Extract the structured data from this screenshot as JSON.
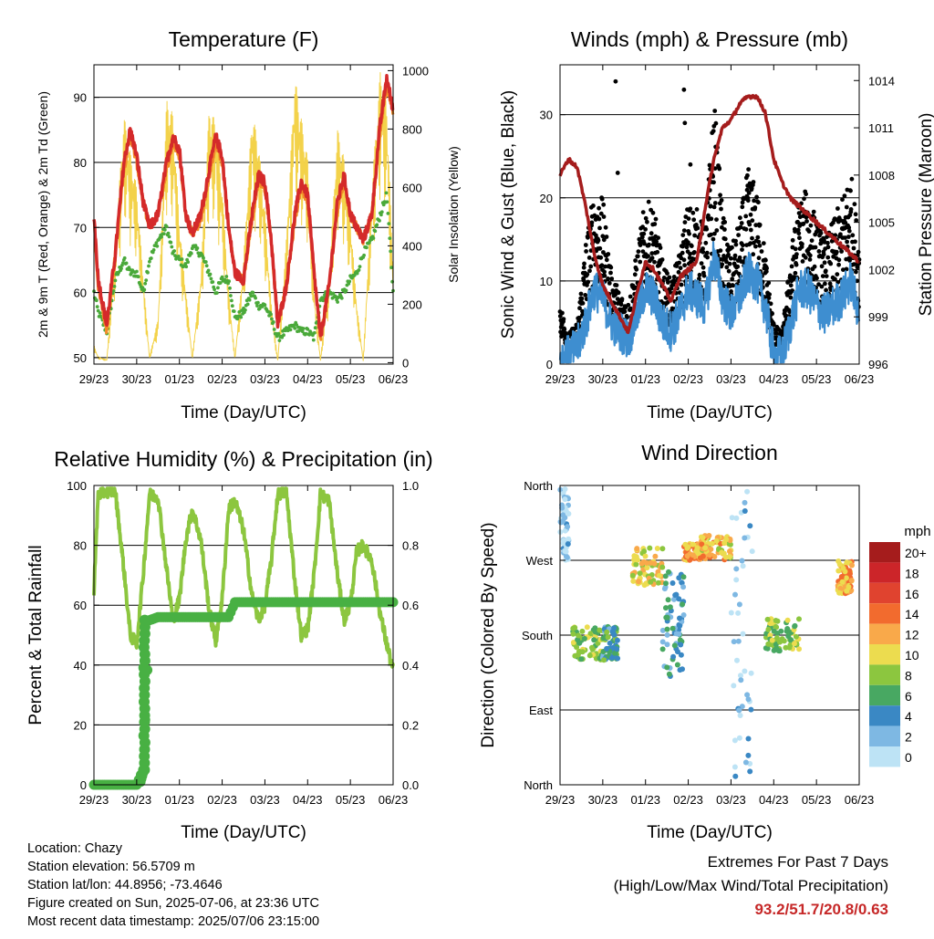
{
  "x_ticks": [
    "29/23",
    "30/23",
    "01/23",
    "02/23",
    "03/23",
    "04/23",
    "05/23",
    "06/23"
  ],
  "x_label": "Time (Day/UTC)",
  "panels": {
    "temperature": {
      "title": "Temperature (F)",
      "ylabel_left": "2m & 9m T (Red, Orange) & 2m Td (Green)",
      "ylabel_right": "Solar Insolation (Yellow)",
      "left_ticks": [
        "50",
        "60",
        "70",
        "80",
        "90"
      ],
      "right_ticks": [
        "0",
        "200",
        "400",
        "600",
        "800",
        "1000"
      ]
    },
    "winds": {
      "title": "Winds (mph) & Pressure (mb)",
      "ylabel_left": "Sonic Wind & Gust (Blue, Black)",
      "ylabel_right": "Station Pressure (Maroon)",
      "left_ticks": [
        "0",
        "10",
        "20",
        "30"
      ],
      "right_ticks": [
        "996",
        "999",
        "1002",
        "1005",
        "1008",
        "1011",
        "1014"
      ]
    },
    "humidity": {
      "title": "Relative Humidity (%) & Precipitation (in)",
      "ylabel_left": "Percent & Total Rainfall",
      "left_ticks": [
        "0",
        "20",
        "40",
        "60",
        "80",
        "100"
      ],
      "right_ticks": [
        "0.0",
        "0.2",
        "0.4",
        "0.6",
        "0.8",
        "1.0"
      ]
    },
    "direction": {
      "title": "Wind Direction",
      "ylabel_left": "Direction (Colored By Speed)",
      "left_ticks": [
        "North",
        "East",
        "South",
        "West",
        "North"
      ],
      "legend_title": "mph",
      "legend_labels": [
        "20+",
        "18",
        "16",
        "14",
        "12",
        "10",
        "8",
        "6",
        "4",
        "2",
        "0"
      ],
      "legend_colors": [
        "#a51c1c",
        "#cc2529",
        "#e0432f",
        "#f26b2e",
        "#f9a94a",
        "#ecdc4f",
        "#8cc63f",
        "#48a862",
        "#3a88c4",
        "#7eb8e3",
        "#bde3f5"
      ]
    }
  },
  "info": {
    "location": "Location: Chazy",
    "elevation": "Station elevation: 56.5709 m",
    "latlon": "Station lat/lon: 44.8956; -73.4646",
    "created": "Figure created on Sun, 2025-07-06, at 23:36 UTC",
    "recent": "Most recent data timestamp: 2025/07/06 23:15:00"
  },
  "extremes": {
    "line1": "Extremes For Past 7 Days",
    "line2": "(High/Low/Max Wind/Total Precipitation)",
    "values": "93.2/51.7/20.8/0.63"
  },
  "chart_data": [
    {
      "type": "line",
      "title": "Temperature (F)",
      "xlabel": "Time (Day/UTC)",
      "ylabel": "2m & 9m T (Red, Orange) & 2m Td (Green)",
      "ylabel_right": "Solar Insolation (Yellow)",
      "ylim": [
        49,
        95
      ],
      "ylim_right": [
        -5,
        1020
      ],
      "x": [
        0,
        0.1,
        0.3,
        0.5,
        0.7,
        0.85,
        1.0,
        1.15,
        1.3,
        1.5,
        1.7,
        1.85,
        2.0,
        2.15,
        2.3,
        2.5,
        2.7,
        2.85,
        3.0,
        3.15,
        3.3,
        3.5,
        3.7,
        3.85,
        4.0,
        4.15,
        4.3,
        4.5,
        4.7,
        4.85,
        5.0,
        5.15,
        5.3,
        5.5,
        5.7,
        5.85,
        6.0,
        6.15,
        6.3,
        6.5,
        6.7,
        6.85,
        7.0
      ],
      "series": [
        {
          "name": "2m T",
          "color": "#d42a2a",
          "values": [
            72,
            62,
            55,
            66,
            80,
            85,
            81,
            74,
            70,
            72,
            80,
            84,
            82,
            72,
            69,
            72,
            79,
            84,
            81,
            70,
            63,
            62,
            72,
            78,
            77,
            68,
            55,
            61,
            72,
            77,
            75,
            63,
            53,
            61,
            74,
            78,
            72,
            70,
            68,
            72,
            86,
            93,
            88
          ]
        },
        {
          "name": "9m T",
          "color": "#f28c28",
          "values": [
            71,
            61,
            54,
            66,
            79,
            84,
            80,
            74,
            70,
            72,
            79,
            83,
            81,
            72,
            69,
            71,
            78,
            83,
            80,
            70,
            63,
            62,
            71,
            77,
            76,
            68,
            55,
            61,
            71,
            76,
            74,
            63,
            53,
            61,
            73,
            77,
            72,
            70,
            68,
            72,
            85,
            92,
            88
          ]
        },
        {
          "name": "2m Td",
          "color": "#4aa93a",
          "values": [
            60,
            57,
            54,
            62,
            65,
            63,
            63,
            60,
            65,
            68,
            70,
            66,
            65,
            64,
            67,
            66,
            63,
            60,
            62,
            62,
            56,
            57,
            60,
            58,
            58,
            56,
            53,
            54,
            55,
            54,
            54,
            53,
            59,
            60,
            59,
            60,
            62,
            63,
            66,
            68,
            72,
            75,
            60
          ]
        },
        {
          "name": "Solar Insolation",
          "color": "#f3d24a",
          "values": [
            60,
            20,
            10,
            400,
            850,
            720,
            600,
            300,
            20,
            150,
            900,
            850,
            480,
            250,
            20,
            300,
            880,
            820,
            600,
            250,
            20,
            350,
            860,
            750,
            520,
            200,
            10,
            420,
            980,
            840,
            700,
            250,
            10,
            300,
            800,
            700,
            500,
            200,
            10,
            600,
            1000,
            900,
            300
          ]
        }
      ]
    },
    {
      "type": "line",
      "title": "Winds (mph) & Pressure (mb)",
      "xlabel": "Time (Day/UTC)",
      "ylabel": "Sonic Wind & Gust (Blue, Black)",
      "ylabel_right": "Station Pressure (Maroon)",
      "ylim": [
        0,
        36
      ],
      "ylim_right": [
        996,
        1015
      ],
      "x": [
        0,
        0.2,
        0.4,
        0.6,
        0.8,
        1.0,
        1.2,
        1.4,
        1.6,
        1.8,
        2.0,
        2.2,
        2.4,
        2.6,
        2.8,
        3.0,
        3.2,
        3.4,
        3.6,
        3.8,
        4.0,
        4.2,
        4.4,
        4.6,
        4.8,
        5.0,
        5.2,
        5.4,
        5.6,
        5.8,
        6.0,
        6.2,
        6.4,
        6.6,
        6.8,
        7.0
      ],
      "series": [
        {
          "name": "Sonic Wind",
          "color": "#3e8ed0",
          "values": [
            1,
            1,
            2,
            5,
            9,
            8,
            5,
            4,
            3,
            6,
            9,
            8,
            5,
            4,
            6,
            9,
            8,
            7,
            13,
            8,
            6,
            8,
            11,
            10,
            7,
            1,
            1,
            5,
            9,
            9,
            7,
            6,
            7,
            8,
            10,
            6
          ]
        },
        {
          "name": "Gust",
          "color": "#000000",
          "values": [
            6,
            3,
            4,
            12,
            17,
            16,
            9,
            7,
            6,
            11,
            16,
            15,
            10,
            8,
            11,
            16,
            15,
            13,
            26,
            15,
            11,
            14,
            19,
            17,
            11,
            4,
            3,
            11,
            16,
            17,
            14,
            12,
            14,
            16,
            19,
            12
          ]
        },
        {
          "name": "Station Pressure",
          "color": "#a51c1c",
          "values": [
            1008,
            1009,
            1008.5,
            1006,
            1003,
            1001,
            1000,
            999,
            998,
            1000.5,
            1002.5,
            1002,
            1001,
            1000,
            1001.5,
            1002,
            1002.5,
            1006,
            1009,
            1011,
            1011.5,
            1012.5,
            1013,
            1013,
            1012,
            1009,
            1007.5,
            1006.5,
            1006,
            1005.5,
            1005,
            1004.5,
            1004,
            1003.5,
            1003,
            1002.5
          ]
        }
      ]
    },
    {
      "type": "line",
      "title": "Relative Humidity (%) & Precipitation (in)",
      "xlabel": "Time (Day/UTC)",
      "ylabel": "Percent & Total Rainfall",
      "ylim": [
        0,
        100
      ],
      "ylim_right": [
        0.0,
        1.0
      ],
      "x": [
        0,
        0.1,
        0.3,
        0.5,
        0.7,
        0.85,
        1.0,
        1.15,
        1.3,
        1.5,
        1.7,
        1.85,
        2.0,
        2.15,
        2.3,
        2.5,
        2.7,
        2.85,
        3.0,
        3.15,
        3.3,
        3.5,
        3.7,
        3.85,
        4.0,
        4.15,
        4.3,
        4.5,
        4.7,
        4.85,
        5.0,
        5.15,
        5.3,
        5.5,
        5.7,
        5.85,
        6.0,
        6.15,
        6.3,
        6.5,
        6.7,
        6.85,
        7.0
      ],
      "series": [
        {
          "name": "Relative Humidity",
          "color": "#8cc63f",
          "values": [
            65,
            97,
            98,
            98,
            72,
            50,
            47,
            70,
            97,
            96,
            72,
            55,
            62,
            82,
            92,
            82,
            58,
            48,
            62,
            92,
            95,
            85,
            63,
            55,
            60,
            75,
            97,
            98,
            68,
            50,
            52,
            70,
            97,
            95,
            70,
            55,
            60,
            78,
            80,
            75,
            57,
            47,
            38
          ]
        },
        {
          "name": "Total Precipitation",
          "color": "#48b043",
          "values": [
            0,
            0,
            0,
            0,
            0,
            0,
            0,
            0.05,
            0.55,
            0.56,
            0.56,
            0.56,
            0.56,
            0.56,
            0.56,
            0.56,
            0.56,
            0.56,
            0.56,
            0.56,
            0.61,
            0.61,
            0.61,
            0.61,
            0.61,
            0.61,
            0.61,
            0.61,
            0.61,
            0.61,
            0.61,
            0.61,
            0.61,
            0.61,
            0.61,
            0.61,
            0.61,
            0.61,
            0.61,
            0.61,
            0.61,
            0.61,
            0.61
          ]
        }
      ]
    },
    {
      "type": "scatter",
      "title": "Wind Direction",
      "xlabel": "Time (Day/UTC)",
      "ylabel": "Direction (Colored By Speed)",
      "ylim": [
        0,
        360
      ],
      "legend_title": "mph",
      "clusters": [
        {
          "x": [
            0.0,
            0.2
          ],
          "dir": [
            270,
            360
          ],
          "speed": 1
        },
        {
          "x": [
            0.3,
            1.0
          ],
          "dir": [
            150,
            190
          ],
          "speed": 8
        },
        {
          "x": [
            1.0,
            1.35
          ],
          "dir": [
            150,
            190
          ],
          "speed": 5
        },
        {
          "x": [
            1.7,
            2.4
          ],
          "dir": [
            240,
            285
          ],
          "speed": 10
        },
        {
          "x": [
            2.4,
            2.9
          ],
          "dir": [
            130,
            260
          ],
          "speed": 4
        },
        {
          "x": [
            2.9,
            3.3
          ],
          "dir": [
            270,
            290
          ],
          "speed": 12
        },
        {
          "x": [
            3.3,
            4.0
          ],
          "dir": [
            270,
            300
          ],
          "speed": 11
        },
        {
          "x": [
            4.0,
            4.5
          ],
          "dir": [
            0,
            360
          ],
          "speed": 1
        },
        {
          "x": [
            4.8,
            5.6
          ],
          "dir": [
            160,
            200
          ],
          "speed": 8
        },
        {
          "x": [
            6.5,
            6.85
          ],
          "dir": [
            230,
            270
          ],
          "speed": 12
        }
      ]
    }
  ]
}
